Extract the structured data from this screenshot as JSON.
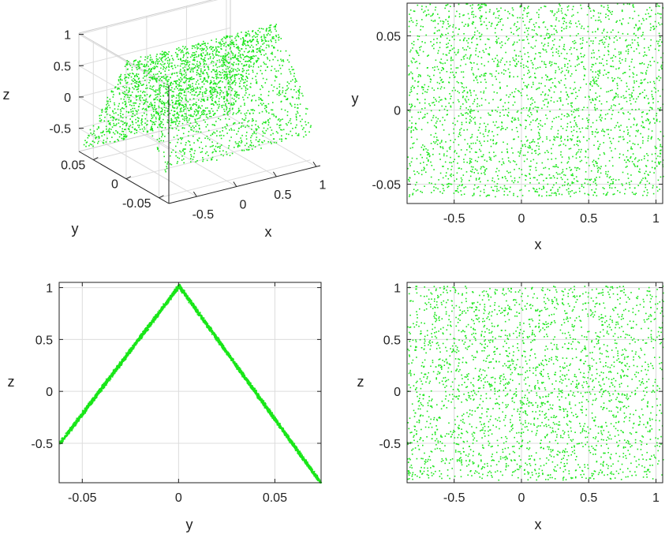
{
  "chart_data": [
    {
      "type": "scatter3d",
      "panel": "top-left",
      "xlabel": "x",
      "ylabel": "y",
      "zlabel": "z",
      "xlim": [
        -0.85,
        1.05
      ],
      "ylim": [
        -0.065,
        0.072
      ],
      "zlim": [
        -0.87,
        1.02
      ],
      "xticks": [
        {
          "v": -0.5,
          "label": "-0.5"
        },
        {
          "v": 0,
          "label": "0"
        },
        {
          "v": 0.5,
          "label": "0.5"
        },
        {
          "v": 1,
          "label": "1"
        }
      ],
      "yticks": [
        {
          "v": -0.05,
          "label": "-0.05"
        },
        {
          "v": 0,
          "label": "0"
        },
        {
          "v": 0.05,
          "label": "0.05"
        }
      ],
      "zticks": [
        {
          "v": -0.5,
          "label": "-0.5"
        },
        {
          "v": 0,
          "label": "0"
        },
        {
          "v": 0.5,
          "label": "0.5"
        },
        {
          "v": 1,
          "label": "1"
        }
      ],
      "grid": true,
      "marker_color": "#19e619",
      "series": [
        {
          "relation": "z = 1 - |y| / 0.0715 * 1.87 (approx); x uniform in [-0.85, 1.05]; y uniform in [-0.065, 0.072]",
          "n_points": 5000
        }
      ]
    },
    {
      "type": "scatter",
      "panel": "top-right",
      "xlabel": "x",
      "ylabel": "y",
      "xlim": [
        -0.85,
        1.05
      ],
      "ylim": [
        -0.063,
        0.072
      ],
      "xticks": [
        {
          "v": -0.5,
          "label": "-0.5"
        },
        {
          "v": 0,
          "label": "0"
        },
        {
          "v": 0.5,
          "label": "0.5"
        },
        {
          "v": 1,
          "label": "1"
        }
      ],
      "yticks": [
        {
          "v": -0.05,
          "label": "-0.05"
        },
        {
          "v": 0,
          "label": "0"
        },
        {
          "v": 0.05,
          "label": "0.05"
        }
      ],
      "grid": true,
      "marker_color": "#19e619",
      "series": [
        {
          "distribution": "uniform",
          "x_range": [
            -0.85,
            1.05
          ],
          "y_range": [
            -0.055,
            0.072
          ],
          "n_points": 5000
        }
      ]
    },
    {
      "type": "scatter",
      "panel": "bottom-left",
      "xlabel": "y",
      "ylabel": "z",
      "xlim": [
        -0.062,
        0.074
      ],
      "ylim": [
        -0.88,
        1.05
      ],
      "xticks": [
        {
          "v": -0.05,
          "label": "-0.05"
        },
        {
          "v": 0,
          "label": "0"
        },
        {
          "v": 0.05,
          "label": "0.05"
        }
      ],
      "yticks": [
        {
          "v": -0.5,
          "label": "-0.5"
        },
        {
          "v": 0,
          "label": "0"
        },
        {
          "v": 0.5,
          "label": "0.5"
        },
        {
          "v": 1,
          "label": "1"
        }
      ],
      "grid": true,
      "marker_color": "#19e619",
      "series": [
        {
          "shape": "inverted V",
          "peak": [
            0,
            1.02
          ],
          "left_end": [
            -0.062,
            -0.5
          ],
          "right_end": [
            0.074,
            -0.88
          ],
          "n_points": 5000
        }
      ]
    },
    {
      "type": "scatter",
      "panel": "bottom-right",
      "xlabel": "x",
      "ylabel": "z",
      "xlim": [
        -0.85,
        1.05
      ],
      "ylim": [
        -0.88,
        1.05
      ],
      "xticks": [
        {
          "v": -0.5,
          "label": "-0.5"
        },
        {
          "v": 0,
          "label": "0"
        },
        {
          "v": 0.5,
          "label": "0.5"
        },
        {
          "v": 1,
          "label": "1"
        }
      ],
      "yticks": [
        {
          "v": -0.5,
          "label": "-0.5"
        },
        {
          "v": 0,
          "label": "0"
        },
        {
          "v": 0.5,
          "label": "0.5"
        },
        {
          "v": 1,
          "label": "1"
        }
      ],
      "grid": true,
      "marker_color": "#19e619",
      "series": [
        {
          "distribution": "uniform",
          "x_range": [
            -0.85,
            1.05
          ],
          "y_range": [
            -0.85,
            1.02
          ],
          "n_points": 5000
        }
      ]
    }
  ]
}
